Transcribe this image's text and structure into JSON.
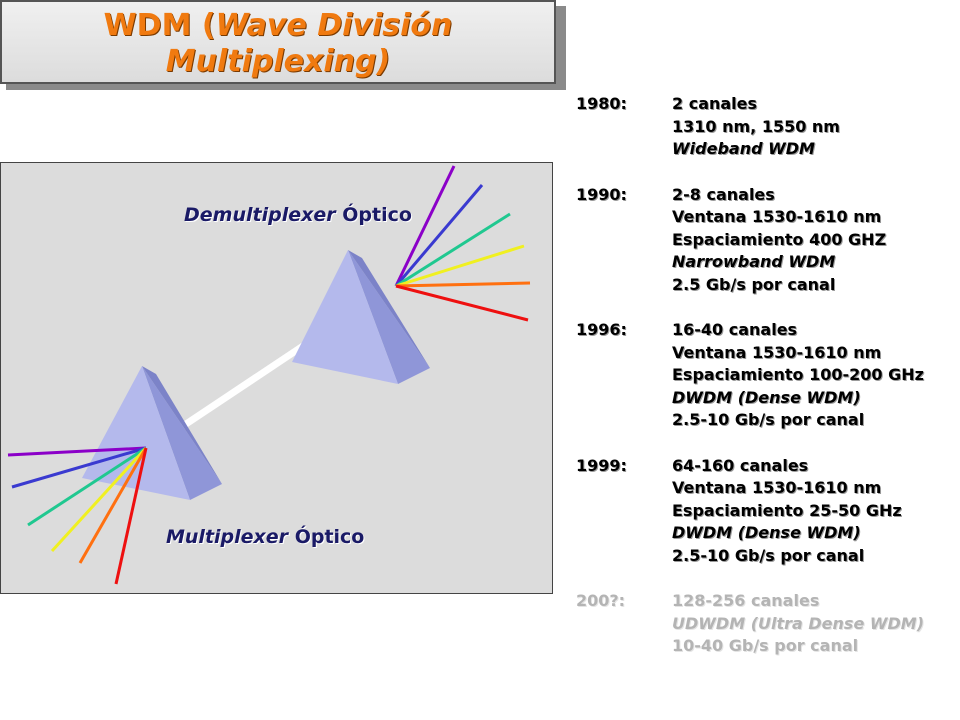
{
  "title": {
    "line1_prefix": "WDM (",
    "line1_italic": "Wave División",
    "line2_italic": "Multiplexing)"
  },
  "diagram": {
    "demux_label_italic": "Demultiplexer",
    "demux_label_plain": "Óptico",
    "mux_label_italic": "Multiplexer",
    "mux_label_plain": "Óptico",
    "beam_colors": [
      "#8b00c8",
      "#3a3ad0",
      "#20c890",
      "#f0f020",
      "#ff7010",
      "#ee1010"
    ],
    "prism_color": "#aab0e8"
  },
  "timeline": [
    {
      "year": "1980:",
      "lines": [
        {
          "text": "2 canales",
          "italic": false
        },
        {
          "text": "1310 nm, 1550 nm",
          "italic": false
        },
        {
          "text": "Wideband WDM",
          "italic": true
        }
      ]
    },
    {
      "year": "1990:",
      "lines": [
        {
          "text": "2-8 canales",
          "italic": false
        },
        {
          "text": "Ventana 1530-1610 nm",
          "italic": false
        },
        {
          "text": "Espaciamiento 400 GHZ",
          "italic": false
        },
        {
          "text": "Narrowband WDM",
          "italic": true
        },
        {
          "text": "2.5 Gb/s por canal",
          "italic": false
        }
      ]
    },
    {
      "year": "1996:",
      "lines": [
        {
          "text": "16-40 canales",
          "italic": false
        },
        {
          "text": "Ventana 1530-1610 nm",
          "italic": false
        },
        {
          "text": "Espaciamiento 100-200 GHz",
          "italic": false
        },
        {
          "text": "DWDM (Dense WDM)",
          "italic": true
        },
        {
          "text": "2.5-10 Gb/s por canal",
          "italic": false
        }
      ]
    },
    {
      "year": "1999:",
      "lines": [
        {
          "text": "64-160 canales",
          "italic": false
        },
        {
          "text": "Ventana 1530-1610 nm",
          "italic": false
        },
        {
          "text": "Espaciamiento 25-50 GHz",
          "italic": false
        },
        {
          "text": "DWDM (Dense WDM)",
          "italic": true
        },
        {
          "text": "2.5-10 Gb/s por canal",
          "italic": false
        }
      ]
    },
    {
      "year": "200?:",
      "faded": true,
      "lines": [
        {
          "text": "128-256 canales",
          "italic": false
        },
        {
          "text": "UDWDM (Ultra Dense WDM)",
          "italic": true
        },
        {
          "text": "10-40 Gb/s por canal",
          "italic": false
        }
      ]
    }
  ]
}
